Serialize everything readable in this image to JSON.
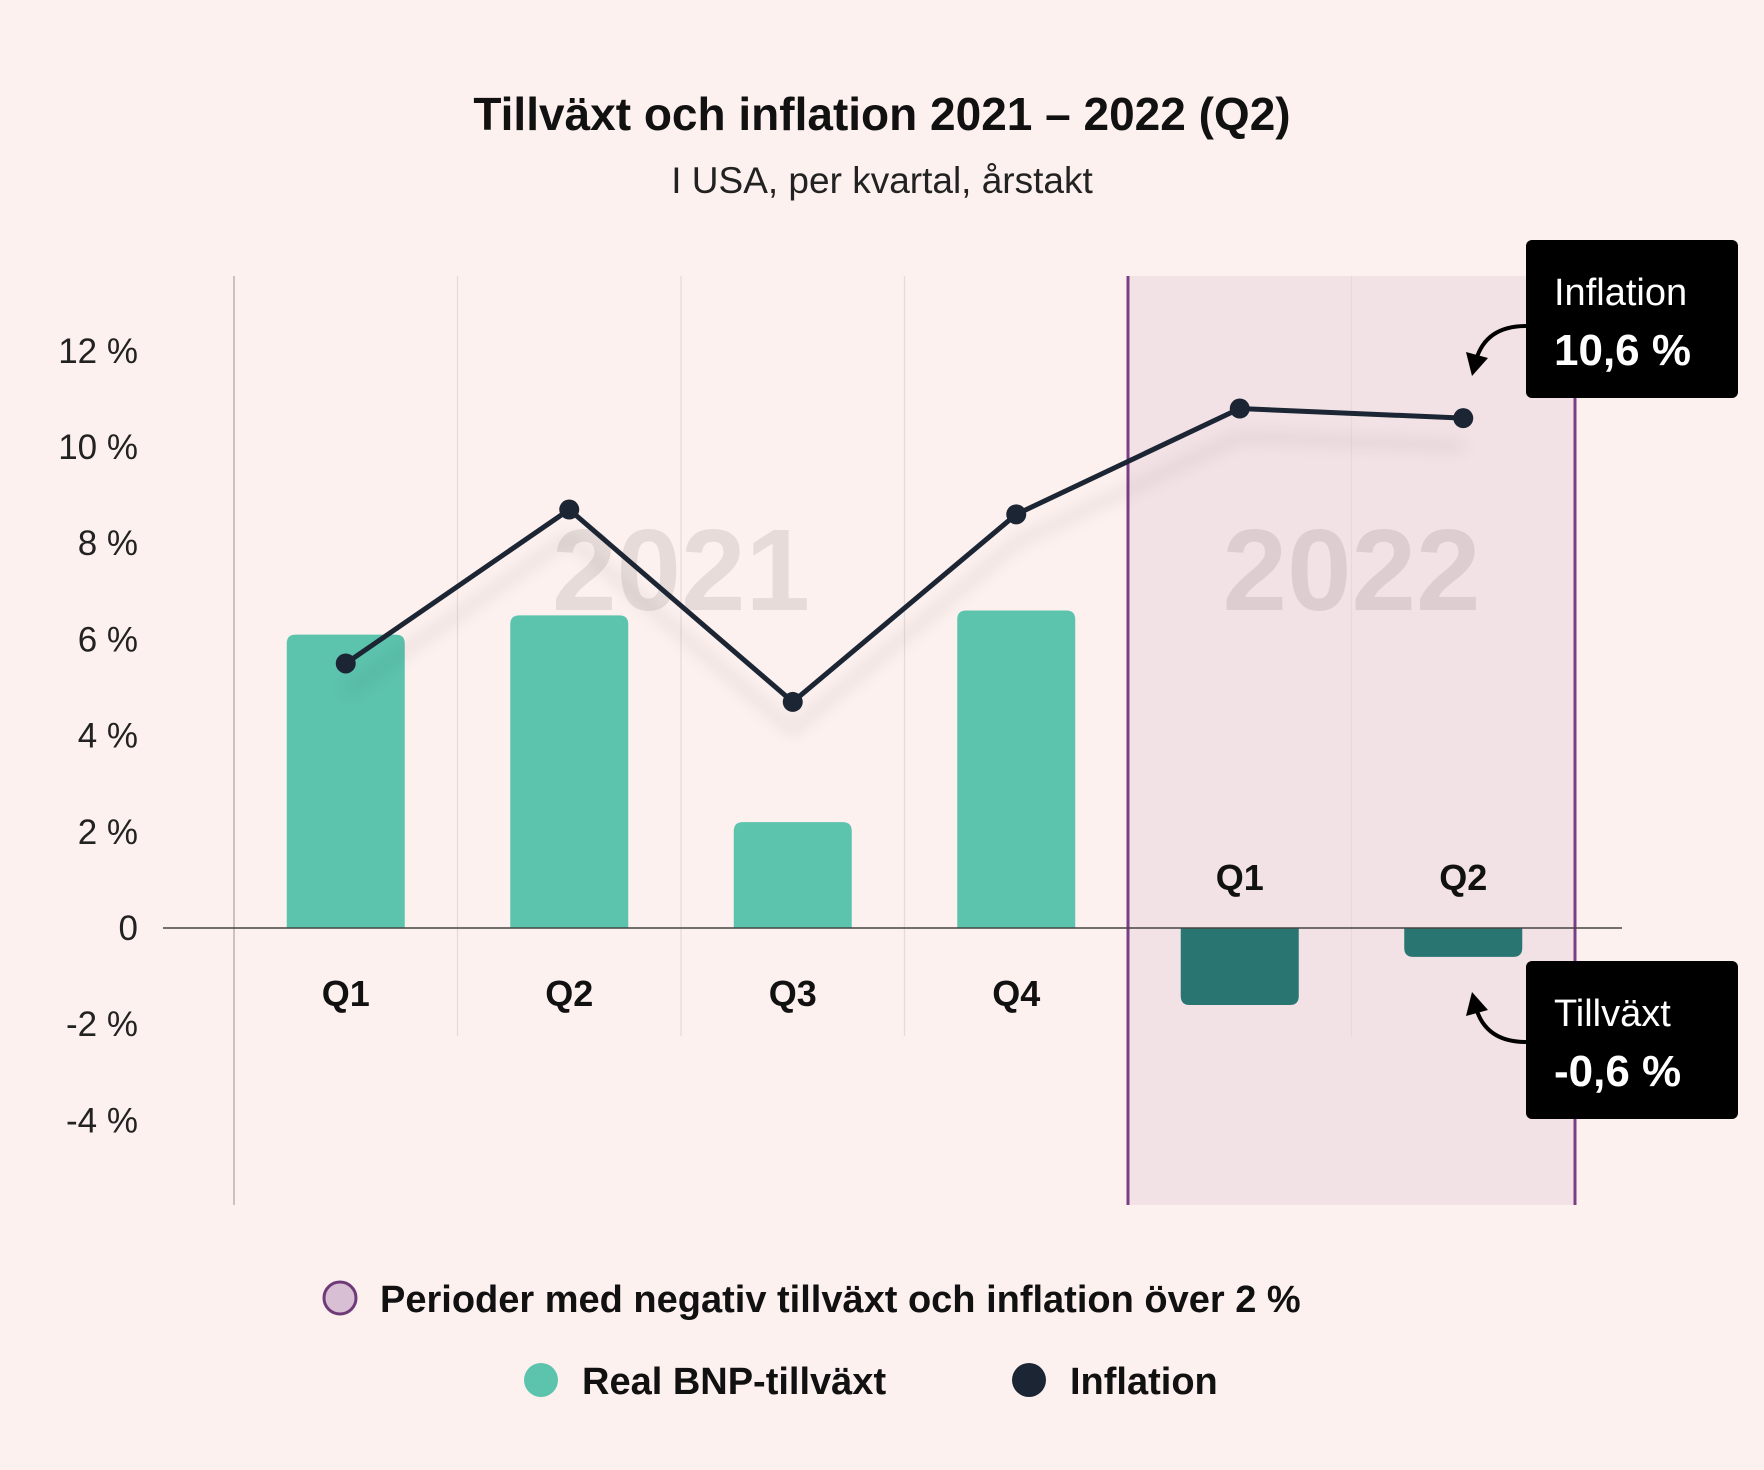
{
  "chart_data": {
    "type": "bar+line",
    "title": "Tillväxt och inflation 2021 – 2022 (Q2)",
    "subtitle": "I USA, per kvartal, årstakt",
    "y_ticks": [
      "12 %",
      "10 %",
      "8 %",
      "6 %",
      "4 %",
      "2 %",
      "0",
      "-2 %",
      "-4 %"
    ],
    "ylim": [
      -6,
      13.8
    ],
    "categories": [
      "Q1",
      "Q2",
      "Q3",
      "Q4",
      "Q1",
      "Q2"
    ],
    "years": [
      {
        "label": "2021",
        "start": 0,
        "end": 3
      },
      {
        "label": "2022",
        "start": 4,
        "end": 5
      }
    ],
    "series": [
      {
        "name": "Real BNP-tillväxt",
        "kind": "bar",
        "values": [
          6.1,
          6.5,
          2.2,
          6.6,
          -1.6,
          -0.6
        ]
      },
      {
        "name": "Inflation",
        "kind": "line",
        "values": [
          5.5,
          8.7,
          4.7,
          8.6,
          10.8,
          10.6
        ]
      }
    ],
    "highlight_period": {
      "start": 4,
      "end": 5
    },
    "callouts": {
      "inflation": {
        "title": "Inflation",
        "value": "10,6 %"
      },
      "growth": {
        "title": "Tillväxt",
        "value": "-0,6 %"
      }
    },
    "legend": {
      "period": "Perioder med negativ tillväxt och inflation över 2 %",
      "bars": "Real BNP-tillväxt",
      "line": "Inflation"
    },
    "colors": {
      "background": "#fdf1ef",
      "bar_positive": "#5cc3ad",
      "bar_negative": "#287572",
      "line": "#1c2534",
      "highlight_fill": "#f3e2e5",
      "highlight_border": "#7b3e86",
      "legend_period": "#d9bfd3"
    }
  }
}
